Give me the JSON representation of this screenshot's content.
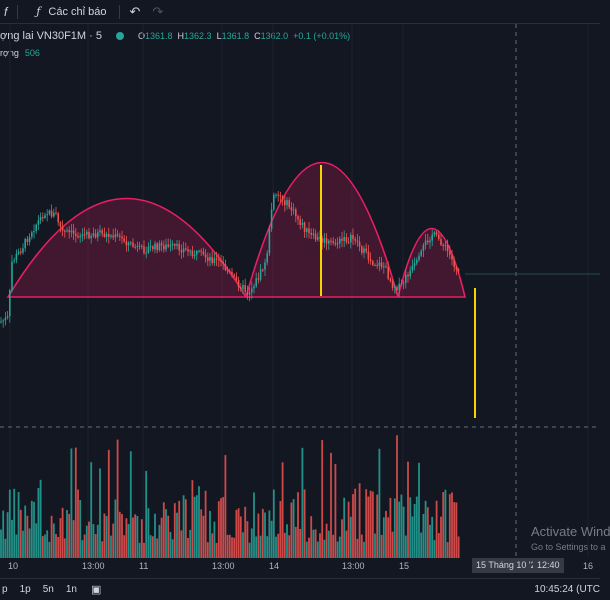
{
  "toolbar": {
    "indicators_label": "Các chỉ báo"
  },
  "legend": {
    "symbol": "ợng lai VN30F1M · 5",
    "open_key": "O",
    "open_val": "1361.8",
    "high_key": "H",
    "high_val": "1362.3",
    "low_key": "L",
    "low_val": "1361.8",
    "close_key": "C",
    "close_val": "1362.0",
    "change": "+0.1 (+0.01%)",
    "volume_label": "rợng",
    "volume_val": "506"
  },
  "xaxis": {
    "ticks": [
      "10",
      "13:00",
      "11",
      "13:00",
      "14",
      "13:00",
      "15",
      "16"
    ],
    "crosshair_date": "15 Tháng 10 '24",
    "crosshair_time": "12:40"
  },
  "bottom": {
    "ranges": [
      "p",
      "1p",
      "5n",
      "1n"
    ],
    "clock": "10:45:24 (UTC"
  },
  "watermark": {
    "line1": "Activate Wind",
    "line2": "Go to Settings to a"
  },
  "colors": {
    "up": "#26a69a",
    "down": "#ef5350",
    "pattern": "#e91e63",
    "marker": "#f5d500",
    "background": "#131722"
  },
  "chart_data": {
    "type": "candlestick",
    "symbol": "VN30F1M",
    "interval": "5",
    "annotations": [
      "arc pattern 1",
      "arc pattern 2",
      "arc pattern 3",
      "vertical marker"
    ]
  }
}
